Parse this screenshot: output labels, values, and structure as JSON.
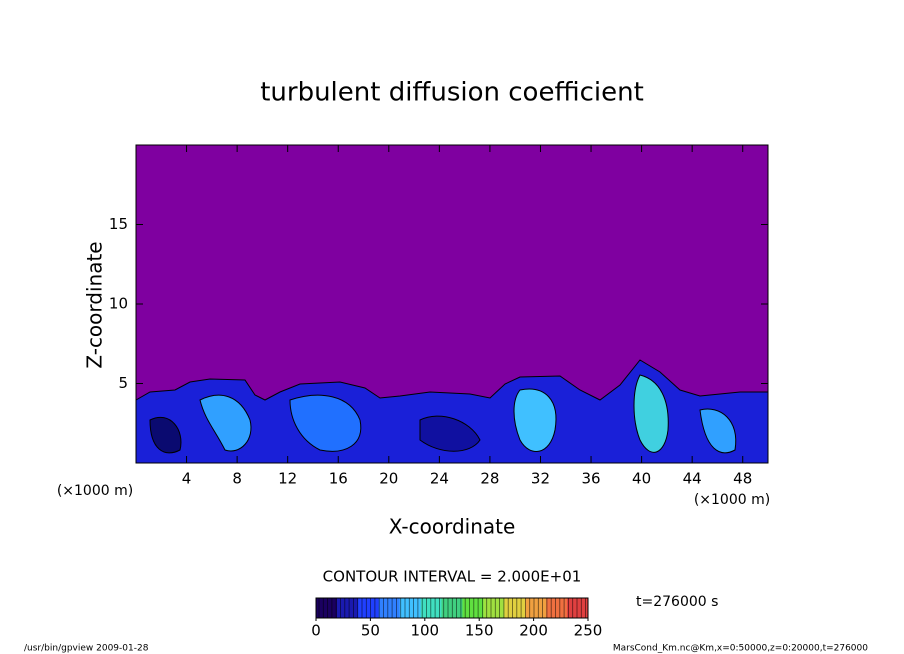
{
  "chart_data": {
    "type": "contour",
    "title": "turbulent diffusion coefficient",
    "xlabel": "X-coordinate",
    "ylabel": "Z-coordinate",
    "x_unit_label": "(×1000 m)",
    "xlim": [
      0,
      50
    ],
    "xticks": [
      4,
      8,
      12,
      16,
      20,
      24,
      28,
      32,
      36,
      40,
      44,
      48
    ],
    "ylim": [
      0,
      20
    ],
    "yticks": [
      5,
      10,
      15
    ],
    "contour_interval_label": "CONTOUR INTERVAL = 2.000E+01",
    "time_label": "t=276000 s",
    "colorbar": {
      "lim": [
        0,
        250
      ],
      "ticks": [
        0,
        50,
        100,
        150,
        200,
        250
      ],
      "colors": [
        "#1a0060",
        "#1a1ab0",
        "#2040ff",
        "#3080ff",
        "#40c0ff",
        "#40e0c0",
        "#40d080",
        "#60e040",
        "#a0e040",
        "#e0d040",
        "#f0a040",
        "#f07040",
        "#e04040"
      ]
    },
    "footer_left": "/usr/bin/gpview  2009-01-28",
    "footer_right": "MarsCond_Km.nc@Km,x=0:50000,z=0:20000,t=276000"
  }
}
